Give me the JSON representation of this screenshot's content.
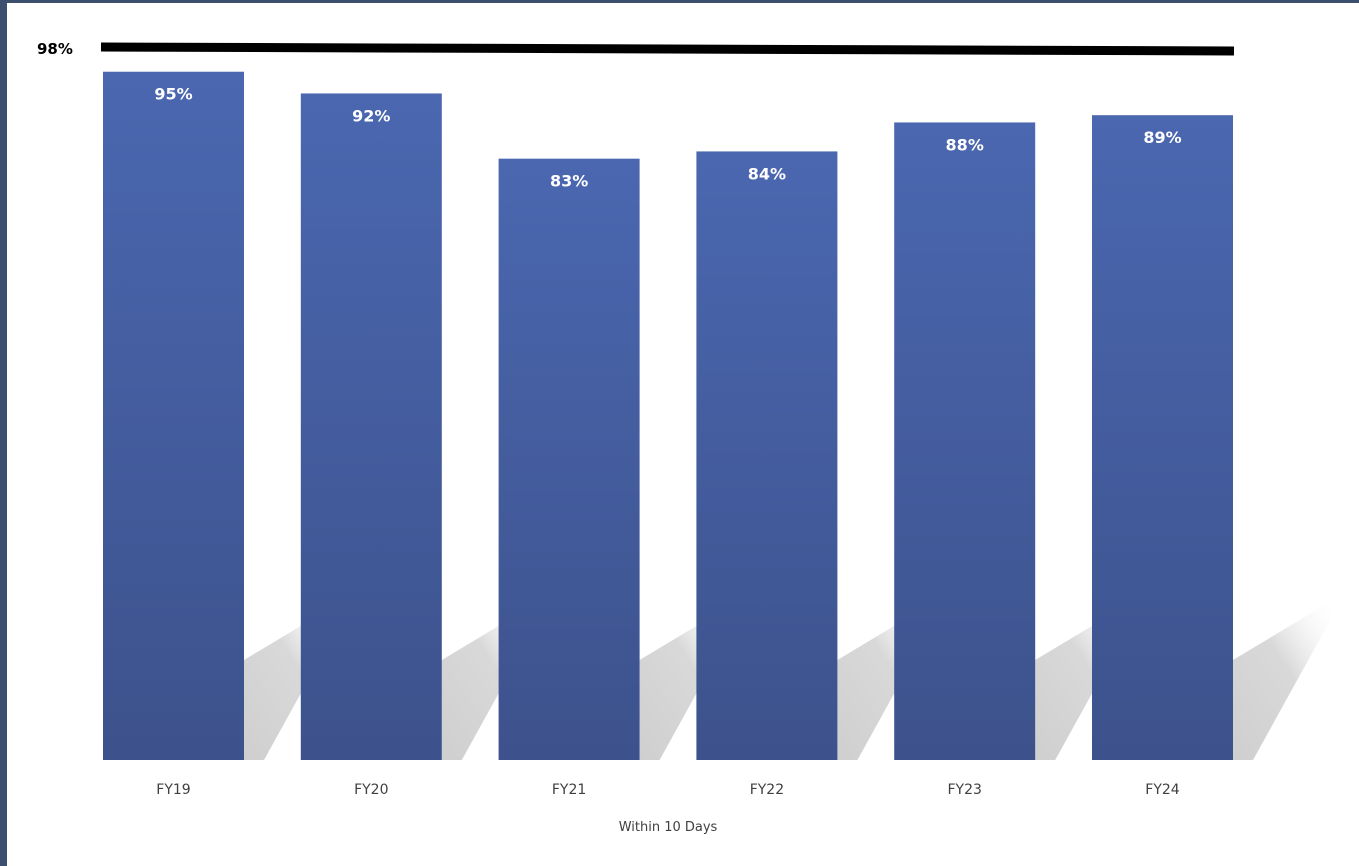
{
  "chart_data": {
    "type": "bar",
    "categories": [
      "FY19",
      "FY20",
      "FY21",
      "FY22",
      "FY23",
      "FY24"
    ],
    "values": [
      95,
      92,
      83,
      84,
      88,
      89
    ],
    "value_labels": [
      "95%",
      "92%",
      "83%",
      "84%",
      "88%",
      "89%"
    ],
    "xlabel": "Within 10 Days",
    "ylabel": "",
    "target": {
      "value": 98,
      "label": "98%"
    },
    "grid": false,
    "legend": "none",
    "colors": {
      "bar_top": "#4a67b0",
      "bar_bottom": "#3d528c",
      "target_line": "#000000",
      "shadow": "#cfcfcf"
    }
  }
}
